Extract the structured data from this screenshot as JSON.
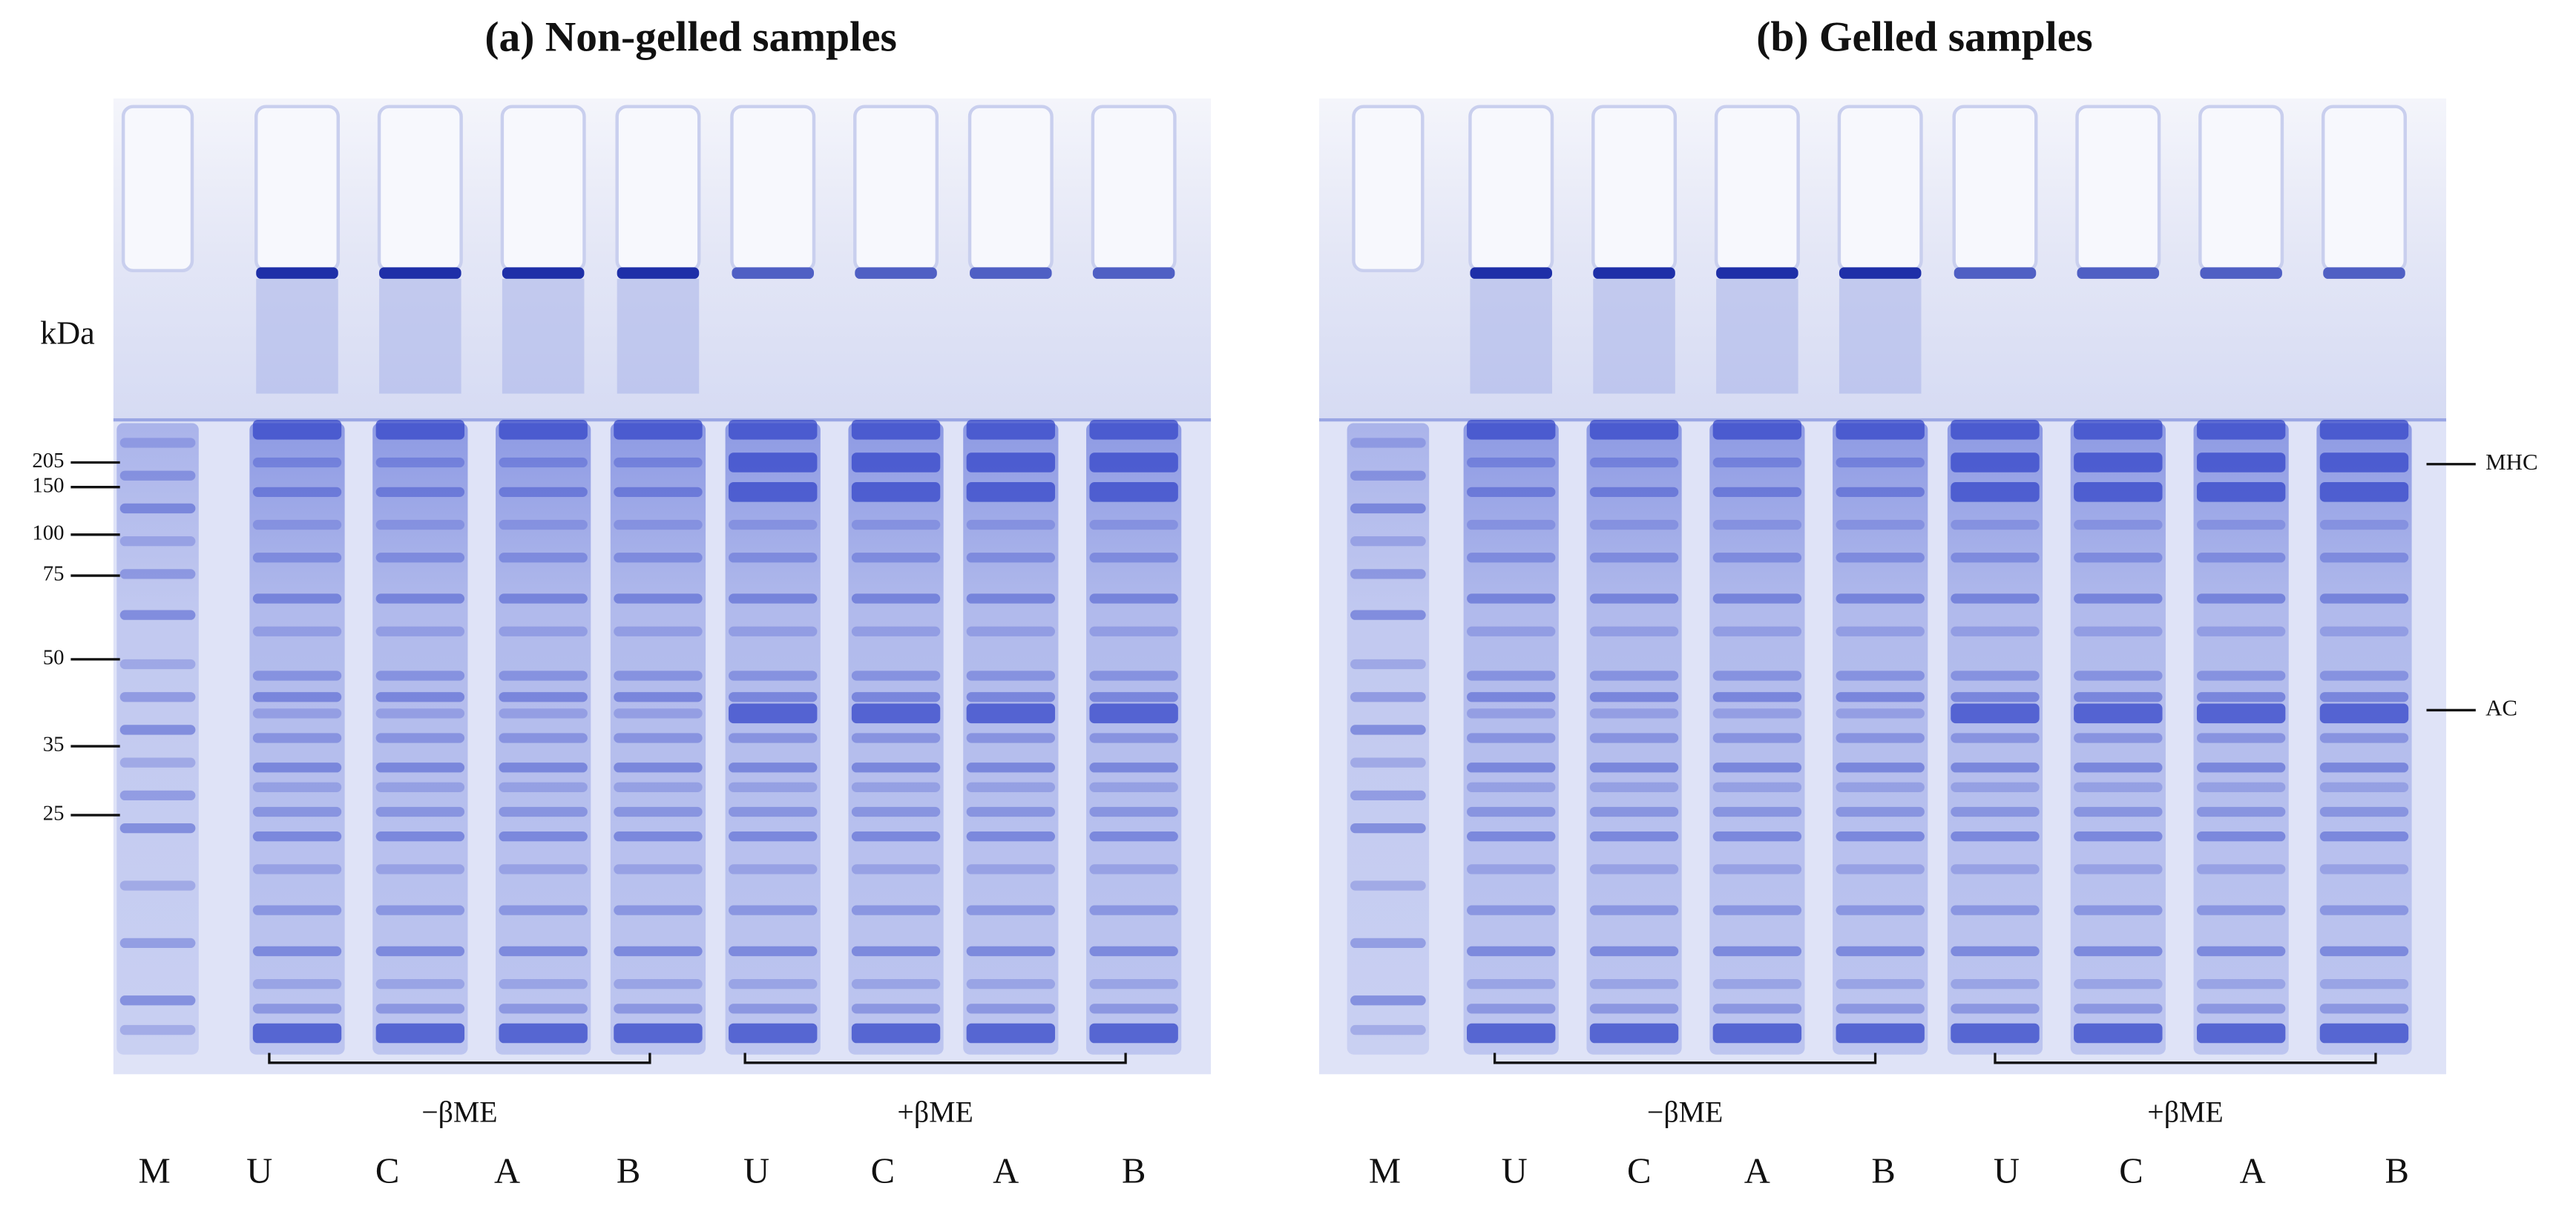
{
  "panels": [
    {
      "title": "(a) Non-gelled samples",
      "unit": "kDa",
      "markers": [
        "205",
        "150",
        "100",
        "75",
        "50",
        "35",
        "25"
      ],
      "groups": [
        "−βME",
        "+βME"
      ],
      "lanes": [
        "M",
        "U",
        "C",
        "A",
        "B",
        "U",
        "C",
        "A",
        "B"
      ]
    },
    {
      "title": "(b) Gelled samples",
      "bands": [
        "MHC",
        "AC"
      ],
      "groups": [
        "−βME",
        "+βME"
      ],
      "lanes": [
        "M",
        "U",
        "C",
        "A",
        "B",
        "U",
        "C",
        "A",
        "B"
      ]
    }
  ]
}
